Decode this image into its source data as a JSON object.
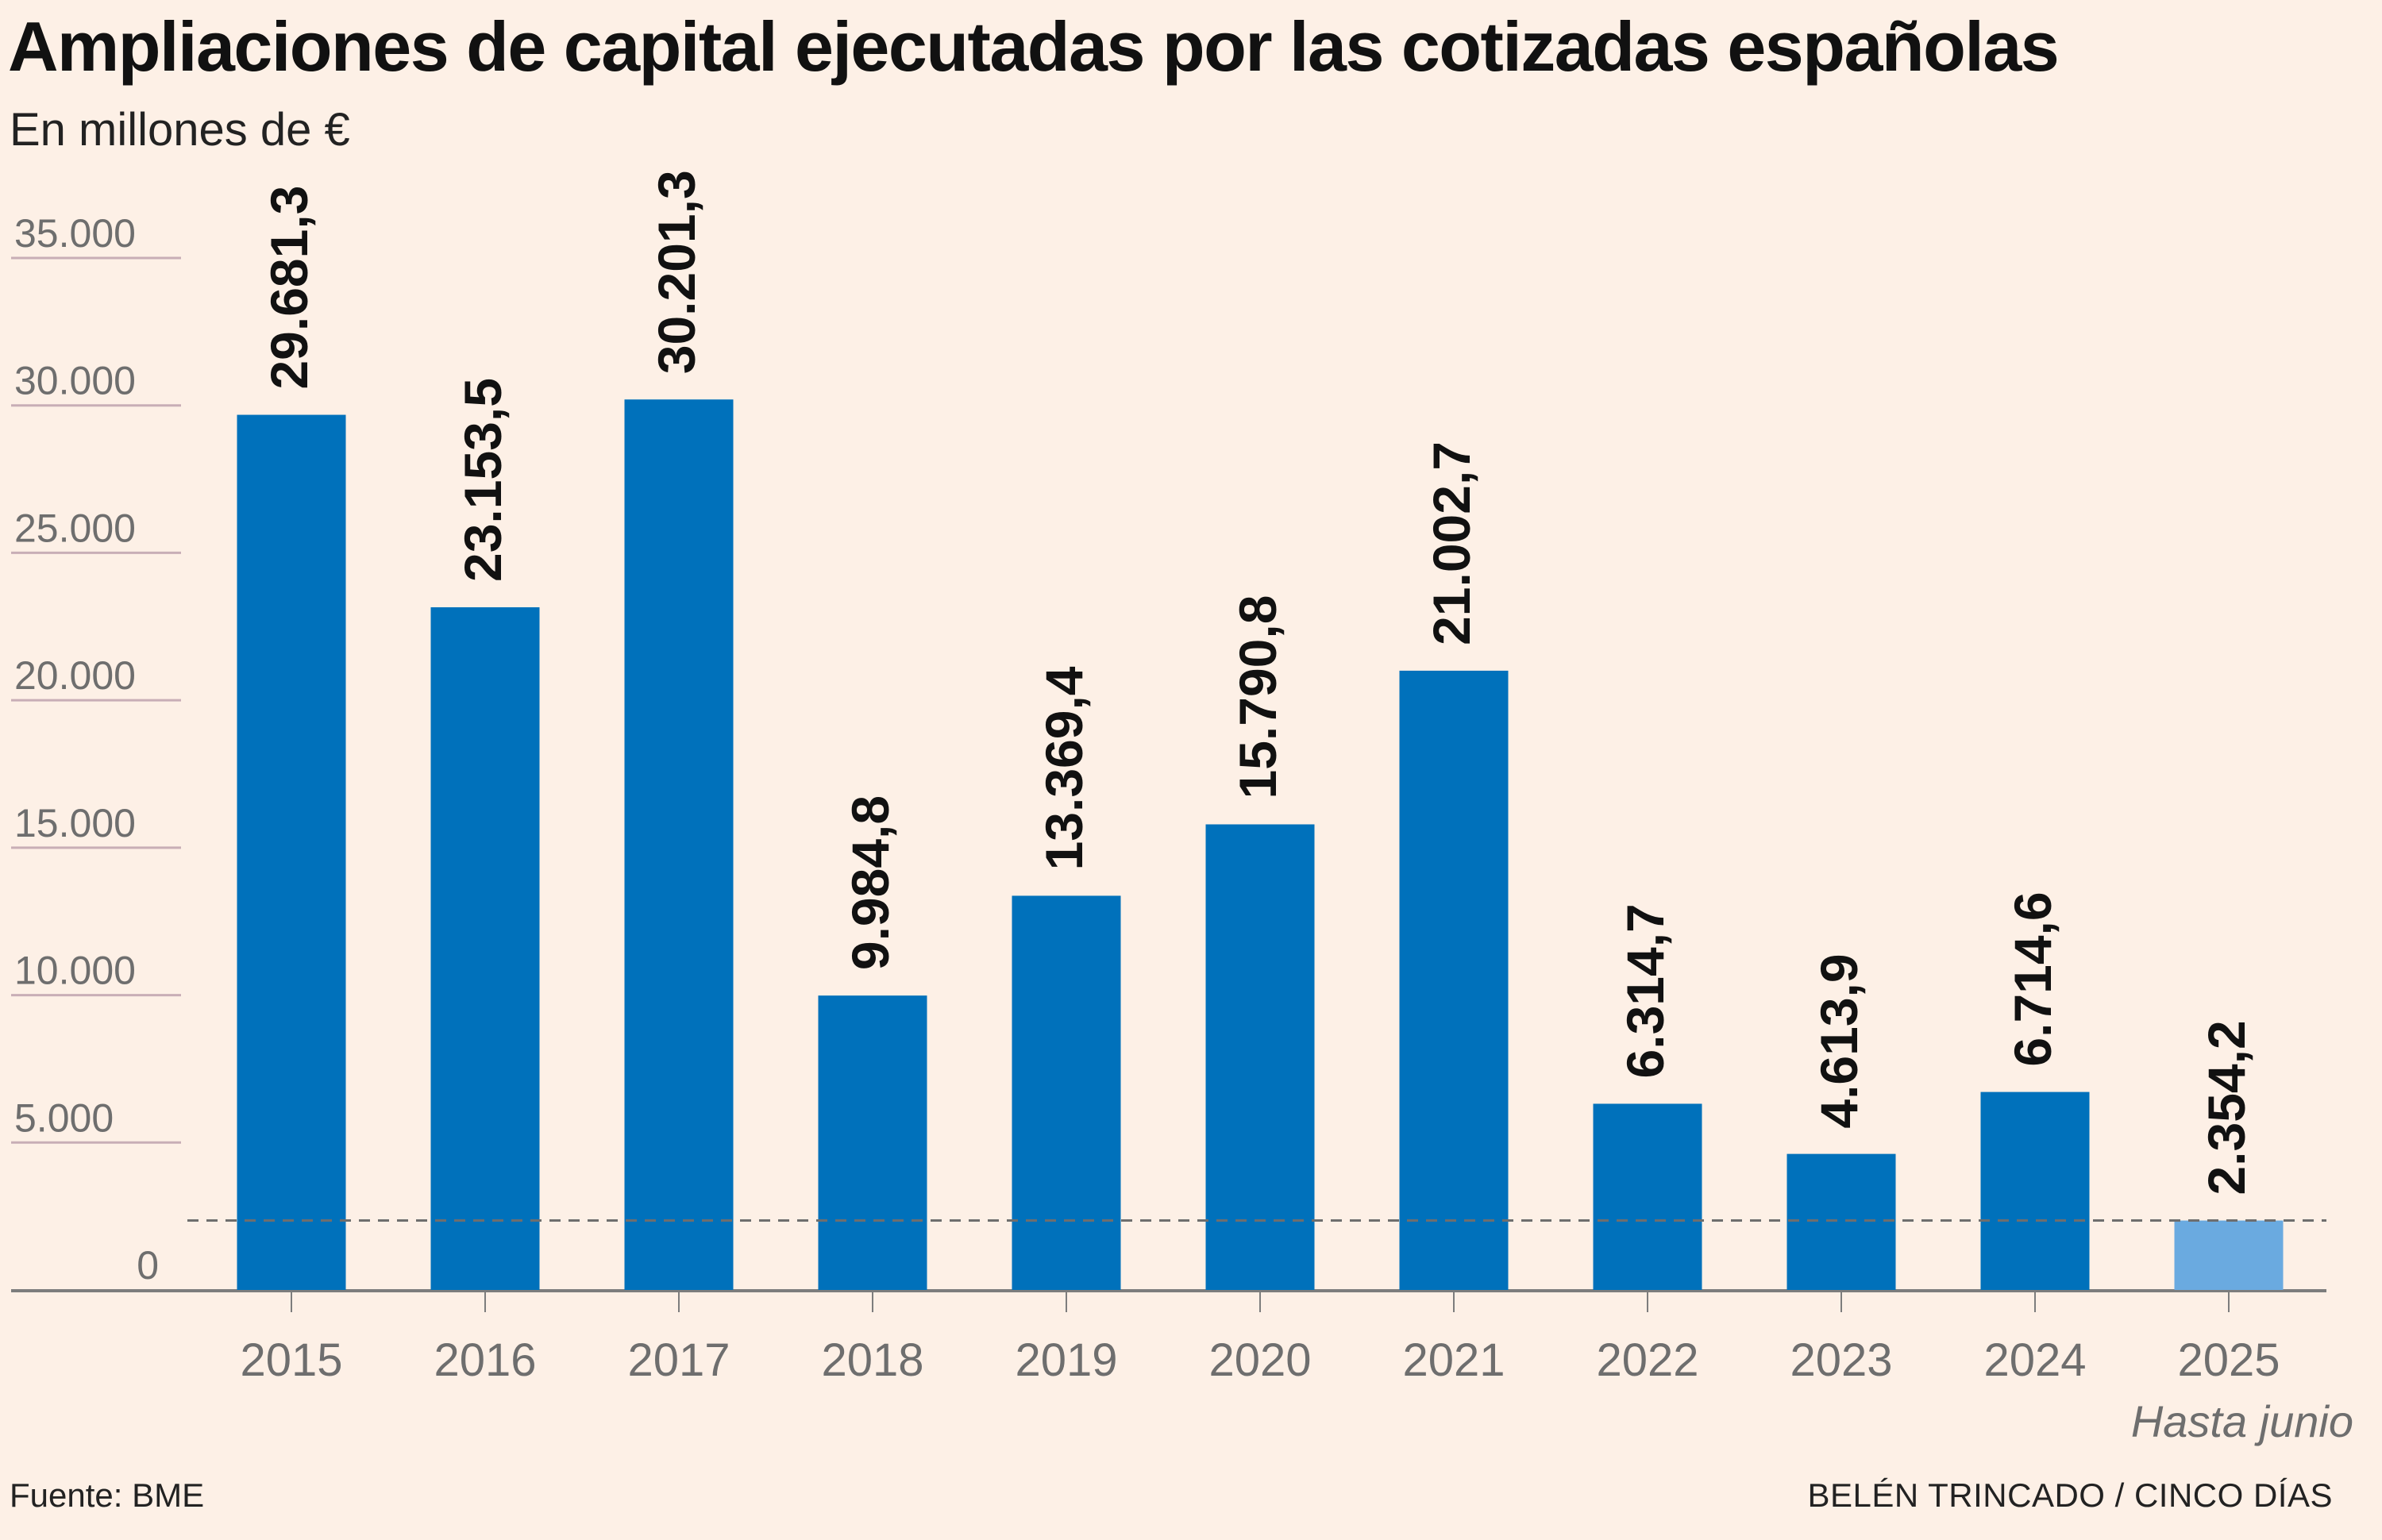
{
  "title": "Ampliaciones de capital ejecutadas por las cotizadas españolas",
  "subtitle": "En millones de €",
  "source": "Fuente: BME",
  "credit": "BELÉN TRINCADO / CINCO DÍAS",
  "colors": {
    "background": "#fdf0e6",
    "bar": "#0071bb",
    "bar_partial": "#6aaae0",
    "gridline": "#c8aeb6",
    "axis": "#7d7d7d",
    "tick_text": "#6e6e6e",
    "reference_line": "#6e6e6e"
  },
  "chart_data": {
    "type": "bar",
    "title": "Ampliaciones de capital ejecutadas por las cotizadas españolas",
    "ylabel": "En millones de €",
    "xlabel": "",
    "categories": [
      "2015",
      "2016",
      "2017",
      "2018",
      "2019",
      "2020",
      "2021",
      "2022",
      "2023",
      "2024",
      "2025"
    ],
    "values": [
      29681.3,
      23153.5,
      30201.3,
      9984.8,
      13369.4,
      15790.8,
      21002.7,
      6314.7,
      4613.9,
      6714.6,
      2354.2
    ],
    "value_labels": [
      "29.681,3",
      "23.153,5",
      "30.201,3",
      "9.984,8",
      "13.369,4",
      "15.790,8",
      "21.002,7",
      "6.314,7",
      "4.613,9",
      "6.714,6",
      "2.354,2"
    ],
    "highlight": {
      "category": "2025",
      "note": "Hasta junio"
    },
    "reference_line": {
      "value": 2354.2,
      "style": "dashed"
    },
    "yticks": [
      0,
      5000,
      10000,
      15000,
      20000,
      25000,
      30000,
      35000
    ],
    "ytick_labels": [
      "0",
      "5.000",
      "10.000",
      "15.000",
      "20.000",
      "25.000",
      "30.000",
      "35.000"
    ],
    "ylim": [
      0,
      35000
    ],
    "grid": true,
    "legend": "none"
  }
}
